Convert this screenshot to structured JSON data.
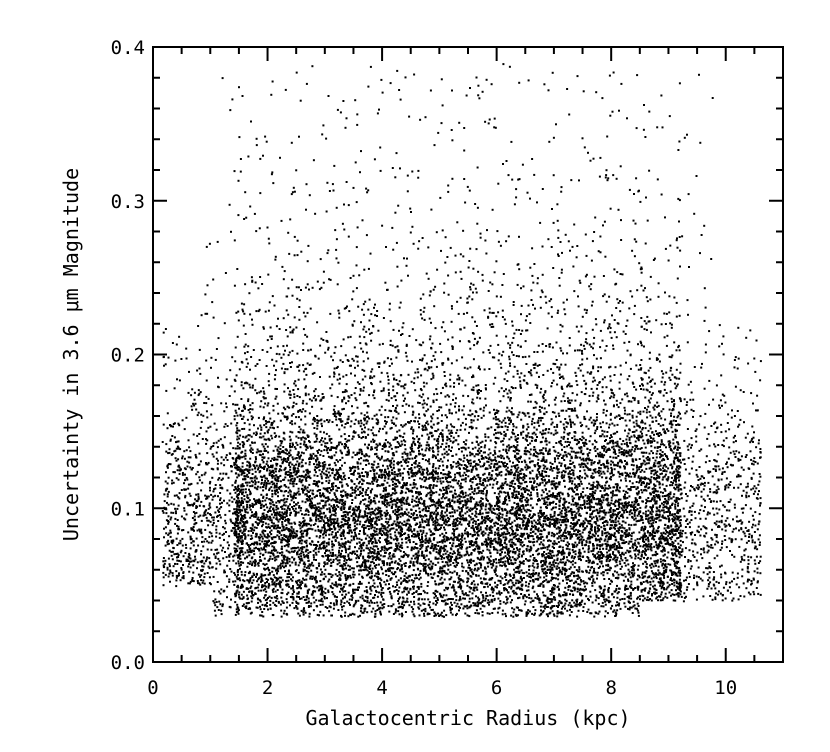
{
  "chart_data": {
    "type": "scatter",
    "title": "",
    "xlabel": "Galactocentric Radius (kpc)",
    "ylabel": "Uncertainty in 3.6 μm Magnitude",
    "xlim": [
      0,
      11
    ],
    "ylim": [
      0.0,
      0.4
    ],
    "x_ticks": [
      0,
      2,
      4,
      6,
      8,
      10
    ],
    "x_tick_labels": [
      "0",
      "2",
      "4",
      "6",
      "8",
      "10"
    ],
    "y_ticks": [
      0.0,
      0.1,
      0.2,
      0.3,
      0.4
    ],
    "y_tick_labels": [
      "0.0",
      "0.1",
      "0.2",
      "0.3",
      "0.4"
    ],
    "x_minor_step": 0.5,
    "y_minor_step": 0.02,
    "grid": false,
    "legend": "none",
    "marker_color": "#000000",
    "series": [
      {
        "description": "dense point cloud of sources",
        "x_range": [
          0.1,
          10.6
        ],
        "y_range": [
          0.025,
          0.39
        ],
        "x_peak_density": [
          2.0,
          8.5
        ],
        "y_peak_density": [
          0.05,
          0.15
        ],
        "y_center_typical": 0.1,
        "approx_points": 14000,
        "density_profile": [
          {
            "x": 0.5,
            "y_median": 0.11
          },
          {
            "x": 1.5,
            "y_median": 0.1
          },
          {
            "x": 3.0,
            "y_median": 0.1
          },
          {
            "x": 5.0,
            "y_median": 0.1
          },
          {
            "x": 7.0,
            "y_median": 0.1
          },
          {
            "x": 8.5,
            "y_median": 0.095
          },
          {
            "x": 9.5,
            "y_median": 0.09
          },
          {
            "x": 10.3,
            "y_median": 0.09
          }
        ]
      }
    ]
  }
}
